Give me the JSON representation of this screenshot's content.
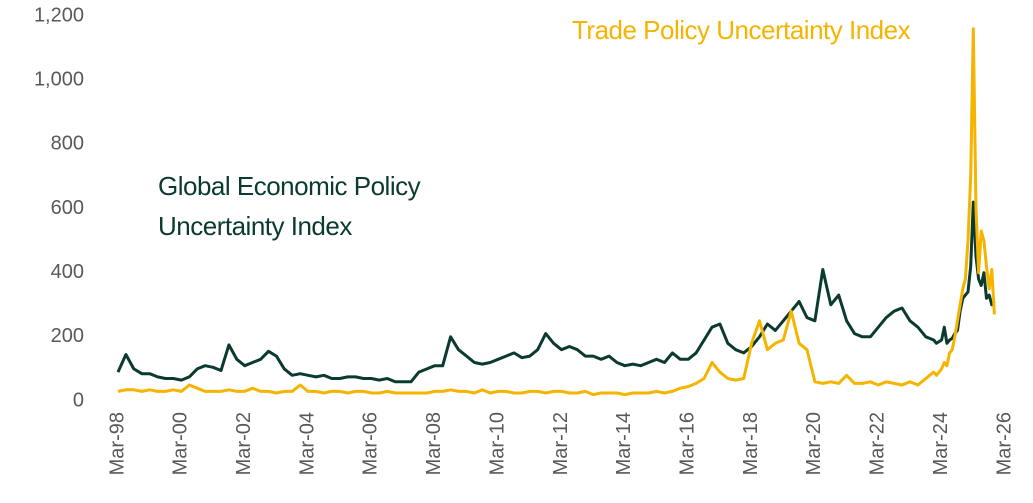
{
  "chart_data": {
    "type": "line",
    "x": [
      "Mar-98",
      "Jun-98",
      "Sep-98",
      "Dec-98",
      "Mar-99",
      "Jun-99",
      "Sep-99",
      "Dec-99",
      "Mar-00",
      "Jun-00",
      "Sep-00",
      "Dec-00",
      "Mar-01",
      "Jun-01",
      "Sep-01",
      "Dec-01",
      "Mar-02",
      "Jun-02",
      "Sep-02",
      "Dec-02",
      "Mar-03",
      "Jun-03",
      "Sep-03",
      "Dec-03",
      "Mar-04",
      "Jun-04",
      "Sep-04",
      "Dec-04",
      "Mar-05",
      "Jun-05",
      "Sep-05",
      "Dec-05",
      "Mar-06",
      "Jun-06",
      "Sep-06",
      "Dec-06",
      "Mar-07",
      "Jun-07",
      "Sep-07",
      "Dec-07",
      "Mar-08",
      "Jun-08",
      "Sep-08",
      "Dec-08",
      "Mar-09",
      "Jun-09",
      "Sep-09",
      "Dec-09",
      "Mar-10",
      "Jun-10",
      "Sep-10",
      "Dec-10",
      "Mar-11",
      "Jun-11",
      "Sep-11",
      "Dec-11",
      "Mar-12",
      "Jun-12",
      "Sep-12",
      "Dec-12",
      "Mar-13",
      "Jun-13",
      "Sep-13",
      "Dec-13",
      "Mar-14",
      "Jun-14",
      "Sep-14",
      "Dec-14",
      "Mar-15",
      "Jun-15",
      "Sep-15",
      "Dec-15",
      "Mar-16",
      "Jun-16",
      "Sep-16",
      "Dec-16",
      "Mar-17",
      "Jun-17",
      "Sep-17",
      "Dec-17",
      "Mar-18",
      "Jun-18",
      "Sep-18",
      "Dec-18",
      "Mar-19",
      "Jun-19",
      "Sep-19",
      "Dec-19",
      "Mar-20",
      "Jun-20",
      "Sep-20",
      "Dec-20",
      "Mar-21",
      "Jun-21",
      "Sep-21",
      "Dec-21",
      "Mar-22",
      "Jun-22",
      "Sep-22",
      "Dec-22",
      "Mar-23",
      "Jun-23",
      "Sep-23",
      "Dec-23",
      "Jan-24",
      "Feb-24",
      "Mar-24",
      "Apr-24",
      "May-24",
      "Jun-24",
      "Jul-24",
      "Aug-24",
      "Sep-24",
      "Oct-24",
      "Nov-24",
      "Dec-24",
      "Jan-25",
      "Feb-25",
      "Mar-25",
      "Apr-25",
      "May-25",
      "Jun-25",
      "Jul-25",
      "Aug-25",
      "Sep-25",
      "Oct-25",
      "Nov-25"
    ],
    "series": [
      {
        "name": "Global Economic Policy Uncertainty Index",
        "color": "#0b3a30",
        "values": [
          90,
          145,
          100,
          85,
          85,
          75,
          70,
          70,
          65,
          75,
          100,
          110,
          105,
          95,
          175,
          130,
          110,
          120,
          130,
          155,
          140,
          100,
          80,
          85,
          80,
          75,
          80,
          70,
          70,
          75,
          75,
          70,
          70,
          65,
          70,
          60,
          60,
          60,
          90,
          100,
          110,
          110,
          200,
          160,
          140,
          120,
          115,
          120,
          130,
          140,
          150,
          135,
          140,
          160,
          210,
          180,
          160,
          170,
          160,
          140,
          140,
          130,
          140,
          120,
          110,
          115,
          110,
          120,
          130,
          120,
          150,
          130,
          130,
          150,
          190,
          230,
          240,
          180,
          160,
          150,
          170,
          200,
          240,
          220,
          250,
          280,
          310,
          260,
          250,
          410,
          300,
          330,
          250,
          210,
          200,
          200,
          230,
          260,
          280,
          290,
          250,
          230,
          200,
          190,
          180,
          185,
          190,
          230,
          180,
          190,
          195,
          210,
          220,
          280,
          320,
          330,
          340,
          420,
          620,
          450,
          380,
          360,
          400,
          320,
          330,
          300,
          310
        ]
      },
      {
        "name": "Trade Policy Uncertainty Index",
        "color": "#f4b400",
        "values": [
          30,
          35,
          35,
          30,
          35,
          30,
          30,
          35,
          30,
          50,
          40,
          30,
          30,
          30,
          35,
          30,
          30,
          40,
          30,
          30,
          25,
          30,
          30,
          50,
          30,
          30,
          25,
          30,
          30,
          25,
          30,
          30,
          25,
          25,
          30,
          25,
          25,
          25,
          25,
          25,
          30,
          30,
          35,
          30,
          30,
          25,
          35,
          25,
          30,
          30,
          25,
          25,
          30,
          30,
          25,
          30,
          30,
          25,
          25,
          30,
          20,
          25,
          25,
          25,
          20,
          25,
          25,
          25,
          30,
          25,
          30,
          40,
          45,
          55,
          70,
          120,
          90,
          70,
          65,
          70,
          180,
          250,
          160,
          180,
          190,
          280,
          180,
          160,
          60,
          55,
          60,
          55,
          80,
          55,
          55,
          60,
          50,
          60,
          55,
          50,
          60,
          50,
          70,
          90,
          80,
          90,
          100,
          120,
          110,
          150,
          160,
          200,
          250,
          300,
          350,
          380,
          500,
          700,
          1160,
          600,
          400,
          530,
          500,
          420,
          350,
          410,
          270
        ]
      }
    ],
    "xlim": [
      "Mar-98",
      "Mar-26"
    ],
    "xticks": [
      "Mar-98",
      "Mar-00",
      "Mar-02",
      "Mar-04",
      "Mar-06",
      "Mar-08",
      "Mar-10",
      "Mar-12",
      "Mar-14",
      "Mar-16",
      "Mar-18",
      "Mar-20",
      "Mar-22",
      "Mar-24",
      "Mar-26"
    ],
    "ylim": [
      0,
      1200
    ],
    "yticks": [
      0,
      200,
      400,
      600,
      800,
      {
        "value": 1000,
        "label": "1,000"
      },
      {
        "value": 1200,
        "label": "1,200"
      }
    ]
  }
}
